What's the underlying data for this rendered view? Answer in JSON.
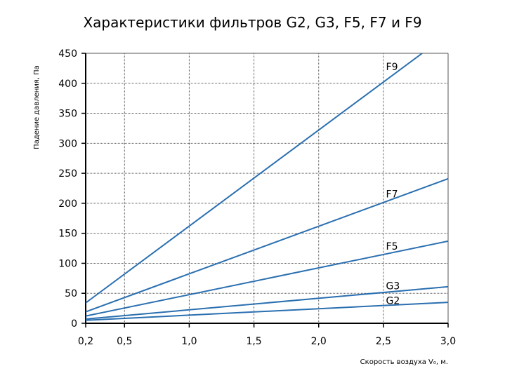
{
  "chart_data": {
    "type": "line",
    "title": "Характеристики фильтров G2, G3, F5, F7 и F9",
    "xlabel": "Скорость воздуха V₀, м.",
    "ylabel": "Падение давления, Па",
    "xlim": [
      0.2,
      3.0
    ],
    "ylim": [
      0,
      450
    ],
    "x_ticks": [
      0.2,
      0.5,
      1.0,
      1.5,
      2.0,
      2.5,
      3.0
    ],
    "x_tick_labels": [
      "0,2",
      "0,5",
      "1,0",
      "1,5",
      "2,0",
      "2,5",
      "3,0"
    ],
    "y_ticks": [
      0,
      50,
      100,
      150,
      200,
      250,
      300,
      350,
      400,
      450
    ],
    "y_tick_labels": [
      "0",
      "50",
      "100",
      "150",
      "200",
      "250",
      "300",
      "350",
      "400",
      "450"
    ],
    "grid": true,
    "line_color": "#2a6fb0",
    "series": [
      {
        "name": "G2",
        "points": [
          [
            0.2,
            5
          ],
          [
            3.0,
            35
          ]
        ]
      },
      {
        "name": "G3",
        "points": [
          [
            0.2,
            7
          ],
          [
            3.0,
            61
          ]
        ]
      },
      {
        "name": "F5",
        "points": [
          [
            0.2,
            12
          ],
          [
            3.0,
            137
          ]
        ]
      },
      {
        "name": "F7",
        "points": [
          [
            0.2,
            19
          ],
          [
            3.0,
            241
          ]
        ]
      },
      {
        "name": "F9",
        "points": [
          [
            0.2,
            34
          ],
          [
            2.8,
            450
          ]
        ]
      }
    ]
  }
}
